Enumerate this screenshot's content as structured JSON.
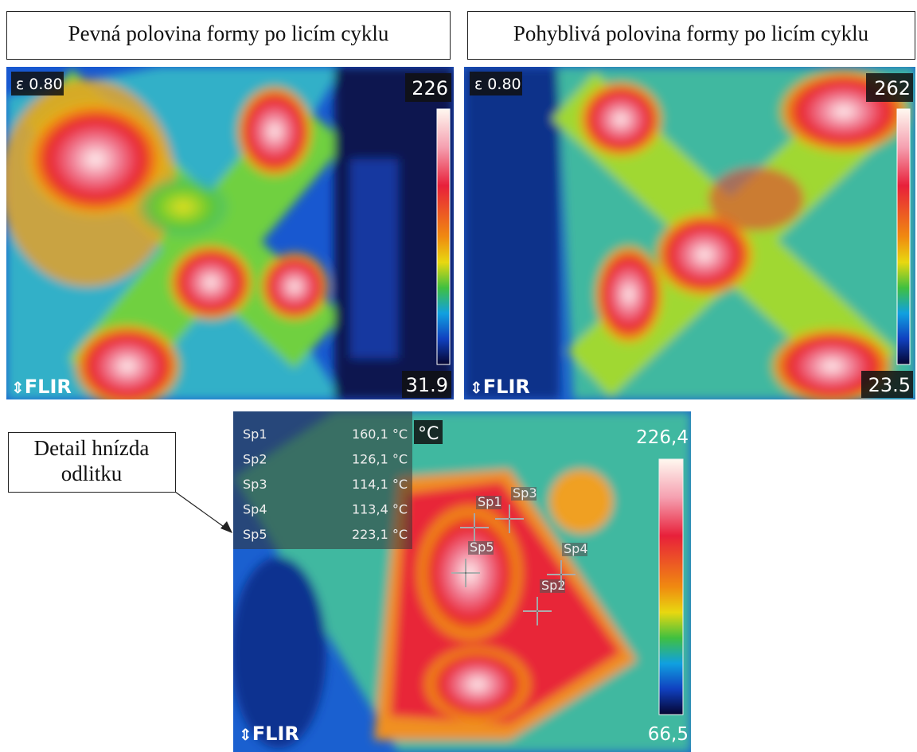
{
  "panels": [
    {
      "caption": "Pevná polovina formy po licím cyklu",
      "emissivity": "ε 0.80",
      "scale_max": "226",
      "scale_min": "31.9",
      "logo": "FLIR"
    },
    {
      "caption": "Pohyblivá polovina formy po licím cyklu",
      "emissivity": "ε 0.80",
      "scale_max": "262",
      "scale_min": "23.5",
      "logo": "FLIR"
    }
  ],
  "detail": {
    "callout": [
      "Detail hnízda",
      "odlitku"
    ],
    "unit": "°C",
    "scale_max": "226,4",
    "scale_min": "66,5",
    "logo": "FLIR",
    "spots": [
      {
        "name": "Sp1",
        "value": "160,1 °C"
      },
      {
        "name": "Sp2",
        "value": "126,1 °C"
      },
      {
        "name": "Sp3",
        "value": "114,1 °C"
      },
      {
        "name": "Sp4",
        "value": "113,4 °C"
      },
      {
        "name": "Sp5",
        "value": "223,1 °C"
      }
    ]
  }
}
